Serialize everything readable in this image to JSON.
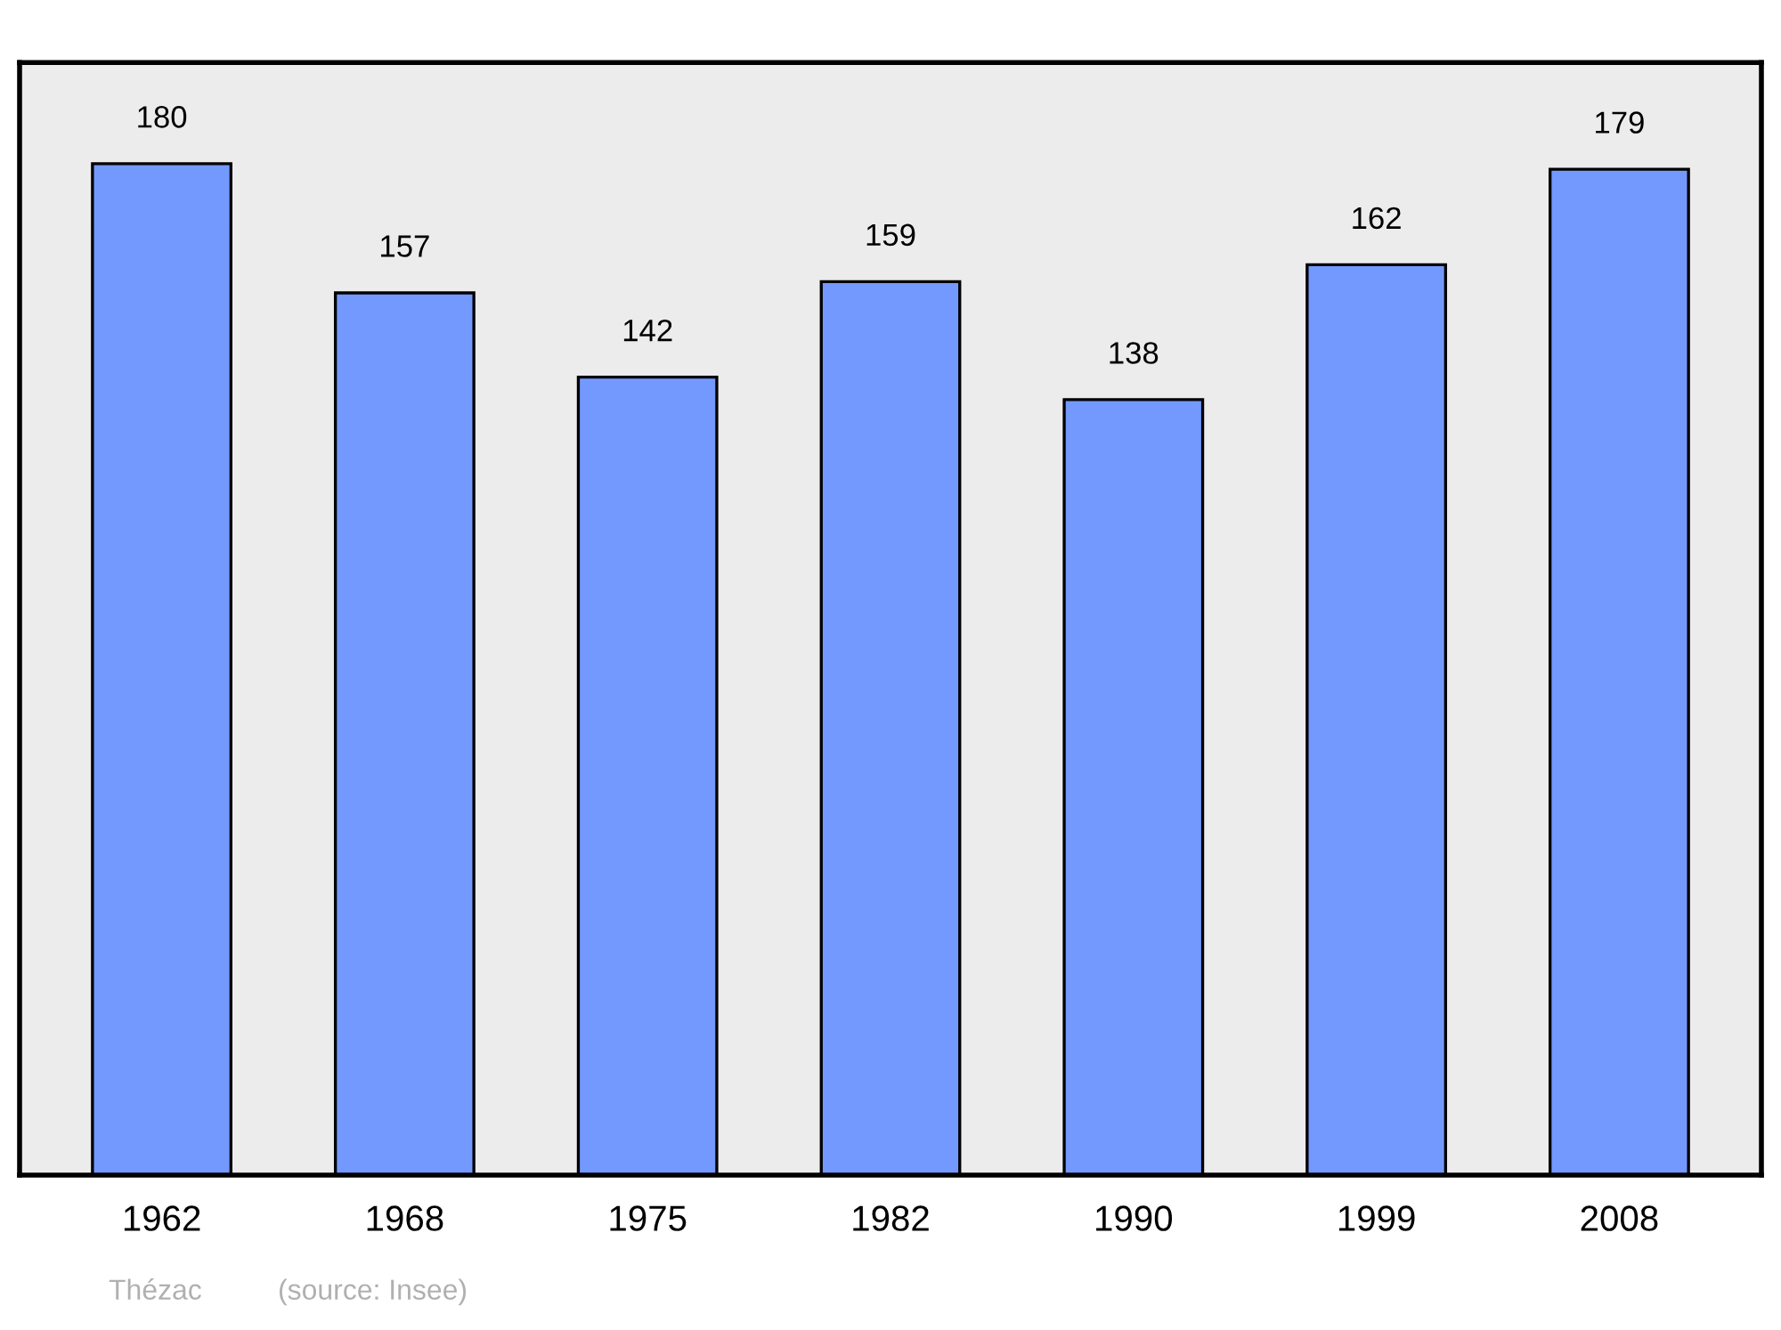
{
  "chart_data": {
    "type": "bar",
    "categories": [
      "1962",
      "1968",
      "1975",
      "1982",
      "1990",
      "1999",
      "2008"
    ],
    "values": [
      180,
      157,
      142,
      159,
      138,
      162,
      179
    ],
    "color": "#7399ff",
    "ylim": [
      0,
      198
    ],
    "data_labels": true,
    "grid": false,
    "annotations": [
      "Thézac",
      "(source: Insee)"
    ]
  }
}
